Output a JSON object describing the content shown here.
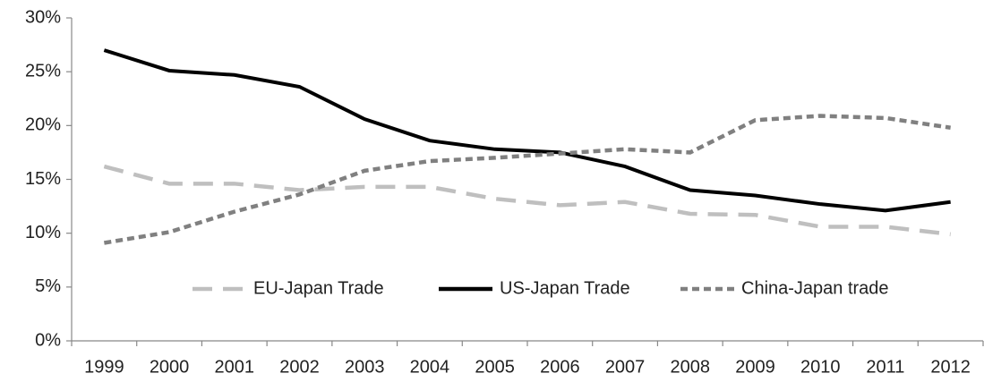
{
  "chart_data": {
    "type": "line",
    "categories": [
      "1999",
      "2000",
      "2001",
      "2002",
      "2003",
      "2004",
      "2005",
      "2006",
      "2007",
      "2008",
      "2009",
      "2010",
      "2011",
      "2012"
    ],
    "series": [
      {
        "name": "EU-Japan Trade",
        "color": "#bfbfbf",
        "dash": "long",
        "values": [
          16.2,
          14.6,
          14.6,
          14.0,
          14.3,
          14.3,
          13.2,
          12.6,
          12.9,
          11.8,
          11.7,
          10.6,
          10.6,
          9.9
        ]
      },
      {
        "name": "US-Japan Trade",
        "color": "#000000",
        "dash": "solid",
        "values": [
          27.0,
          25.1,
          24.7,
          23.6,
          20.6,
          18.6,
          17.8,
          17.5,
          16.2,
          14.0,
          13.5,
          12.7,
          12.1,
          12.9
        ]
      },
      {
        "name": "China-Japan trade",
        "color": "#808080",
        "dash": "short",
        "values": [
          9.1,
          10.1,
          12.0,
          13.6,
          15.8,
          16.7,
          17.0,
          17.4,
          17.8,
          17.5,
          20.5,
          20.9,
          20.7,
          19.8
        ]
      }
    ],
    "ylim": [
      0,
      30
    ],
    "yticks": [
      {
        "value": 0,
        "label": "0%"
      },
      {
        "value": 5,
        "label": "5%"
      },
      {
        "value": 10,
        "label": "10%"
      },
      {
        "value": 15,
        "label": "15%"
      },
      {
        "value": 20,
        "label": "20%"
      },
      {
        "value": 25,
        "label": "25%"
      },
      {
        "value": 30,
        "label": "30%"
      }
    ],
    "grid": false,
    "legend": "bottom"
  }
}
